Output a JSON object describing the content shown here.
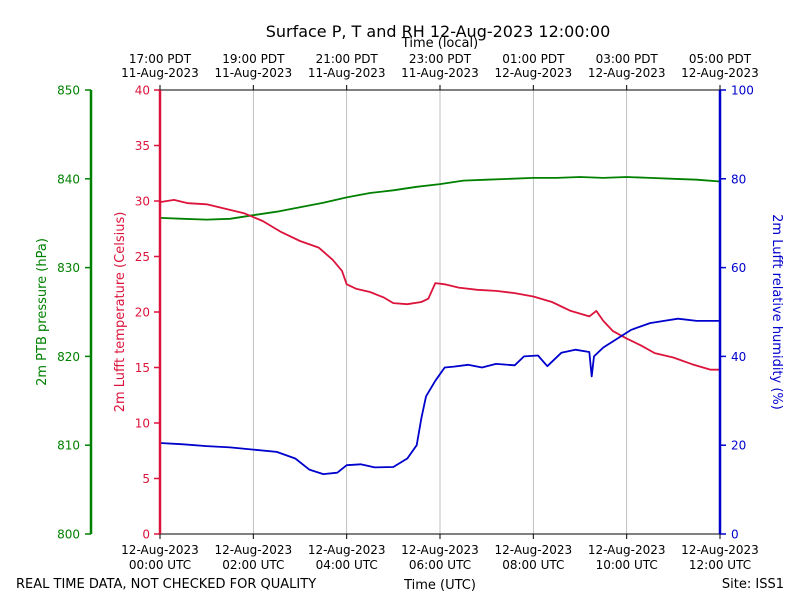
{
  "chart_data": {
    "type": "line",
    "title": "Surface P, T and RH 12-Aug-2023 12:00:00",
    "xlabel_bottom": "Time (UTC)",
    "xlabel_top": "Time (local)",
    "x_range_utc_hours": [
      0,
      12
    ],
    "bottom_ticks": [
      {
        "hour": 0,
        "line1": "12-Aug-2023",
        "line2": "00:00 UTC"
      },
      {
        "hour": 2,
        "line1": "12-Aug-2023",
        "line2": "02:00 UTC"
      },
      {
        "hour": 4,
        "line1": "12-Aug-2023",
        "line2": "04:00 UTC"
      },
      {
        "hour": 6,
        "line1": "12-Aug-2023",
        "line2": "06:00 UTC"
      },
      {
        "hour": 8,
        "line1": "12-Aug-2023",
        "line2": "08:00 UTC"
      },
      {
        "hour": 10,
        "line1": "12-Aug-2023",
        "line2": "10:00 UTC"
      },
      {
        "hour": 12,
        "line1": "12-Aug-2023",
        "line2": "12:00 UTC"
      }
    ],
    "top_ticks": [
      {
        "hour": 0,
        "line1": "17:00 PDT",
        "line2": "11-Aug-2023"
      },
      {
        "hour": 2,
        "line1": "19:00 PDT",
        "line2": "11-Aug-2023"
      },
      {
        "hour": 4,
        "line1": "21:00 PDT",
        "line2": "11-Aug-2023"
      },
      {
        "hour": 6,
        "line1": "23:00 PDT",
        "line2": "11-Aug-2023"
      },
      {
        "hour": 8,
        "line1": "01:00 PDT",
        "line2": "12-Aug-2023"
      },
      {
        "hour": 10,
        "line1": "03:00 PDT",
        "line2": "12-Aug-2023"
      },
      {
        "hour": 12,
        "line1": "05:00 PDT",
        "line2": "12-Aug-2023"
      }
    ],
    "grid": "vertical",
    "axes": {
      "pressure": {
        "label": "2m PTB pressure (hPa)",
        "range": [
          800,
          850
        ],
        "ticks": [
          800,
          810,
          820,
          830,
          840,
          850
        ],
        "color": "#008000"
      },
      "temperature": {
        "label": "2m Lufft temperature (Celsius)",
        "range": [
          0,
          40
        ],
        "ticks": [
          0,
          5,
          10,
          15,
          20,
          25,
          30,
          35,
          40
        ],
        "color": "#dc143c"
      },
      "humidity": {
        "label": "2m Lufft relative humidity (%)",
        "range": [
          0,
          100
        ],
        "ticks": [
          0,
          20,
          40,
          60,
          80,
          100
        ],
        "color": "#0000cd"
      }
    },
    "series": [
      {
        "axis": "pressure",
        "color": "#008000",
        "x": [
          0,
          0.5,
          1,
          1.5,
          2,
          2.5,
          3,
          3.5,
          4,
          4.5,
          5,
          5.5,
          6,
          6.5,
          7,
          7.5,
          8,
          8.5,
          9,
          9.5,
          10,
          10.5,
          11,
          11.5,
          12
        ],
        "y": [
          835.6,
          835.5,
          835.4,
          835.5,
          835.9,
          836.3,
          836.8,
          837.3,
          837.9,
          838.4,
          838.7,
          839.1,
          839.4,
          839.8,
          839.9,
          840.0,
          840.1,
          840.1,
          840.2,
          840.1,
          840.2,
          840.1,
          840.0,
          839.9,
          839.7
        ]
      },
      {
        "axis": "temperature",
        "color": "#dc143c",
        "x": [
          0,
          0.3,
          0.6,
          1.0,
          1.4,
          1.8,
          2.2,
          2.6,
          3.0,
          3.4,
          3.7,
          3.9,
          4.0,
          4.2,
          4.5,
          4.8,
          5.0,
          5.3,
          5.6,
          5.75,
          5.9,
          6.1,
          6.4,
          6.8,
          7.2,
          7.6,
          8.0,
          8.4,
          8.8,
          9.2,
          9.35,
          9.5,
          9.7,
          10.0,
          10.3,
          10.6,
          11.0,
          11.4,
          11.8,
          12.0
        ],
        "y": [
          29.9,
          30.1,
          29.8,
          29.7,
          29.3,
          28.9,
          28.2,
          27.2,
          26.4,
          25.8,
          24.7,
          23.7,
          22.5,
          22.1,
          21.8,
          21.3,
          20.8,
          20.7,
          20.9,
          21.2,
          22.6,
          22.5,
          22.2,
          22.0,
          21.9,
          21.7,
          21.4,
          20.9,
          20.1,
          19.6,
          20.1,
          19.2,
          18.3,
          17.6,
          17.0,
          16.3,
          15.9,
          15.3,
          14.8,
          14.8
        ]
      },
      {
        "axis": "humidity",
        "color": "#0000cd",
        "x": [
          0,
          0.5,
          1,
          1.5,
          2,
          2.5,
          2.9,
          3.2,
          3.5,
          3.8,
          4.0,
          4.3,
          4.6,
          5.0,
          5.3,
          5.5,
          5.6,
          5.7,
          5.9,
          6.1,
          6.3,
          6.6,
          6.9,
          7.2,
          7.6,
          7.8,
          8.1,
          8.3,
          8.6,
          8.9,
          9.2,
          9.25,
          9.3,
          9.5,
          9.8,
          10.1,
          10.5,
          10.8,
          11.1,
          11.5,
          12.0
        ],
        "y": [
          20.5,
          20.2,
          19.8,
          19.5,
          19.0,
          18.5,
          17.0,
          14.5,
          13.5,
          13.8,
          15.5,
          15.7,
          15.0,
          15.1,
          17.0,
          20.0,
          26.0,
          31.0,
          34.5,
          37.5,
          37.7,
          38.1,
          37.5,
          38.3,
          38.0,
          40.0,
          40.2,
          37.8,
          40.8,
          41.5,
          41.0,
          35.5,
          40.0,
          42.0,
          44.0,
          46.0,
          47.5,
          48.0,
          48.5,
          48.0,
          48.0
        ]
      }
    ]
  },
  "footer": {
    "left": "REAL TIME DATA, NOT CHECKED FOR QUALITY",
    "right": "Site: ISS1"
  }
}
